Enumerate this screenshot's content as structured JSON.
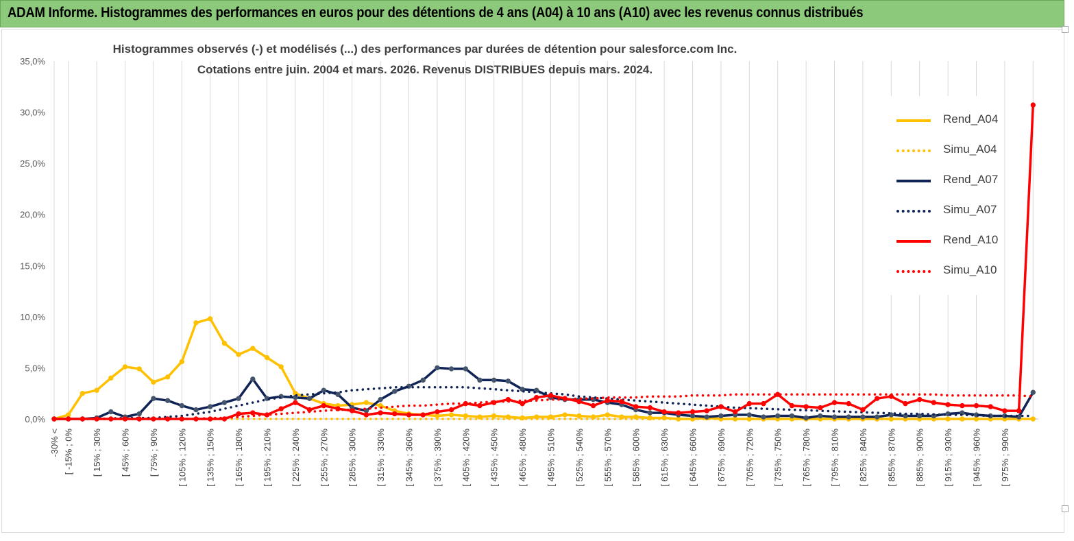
{
  "banner": {
    "title": "ADAM Informe. Histogrammes des performances en euros pour des détentions de 4 ans (A04) à 10 ans (A10) avec les revenus connus distribués"
  },
  "chart_data": {
    "type": "line",
    "title": "Histogrammes observés (-) et modélisés (...) des performances par durées de détention pour salesforce.com Inc.",
    "subtitle": "Cotations entre juin. 2004 et mars. 2026. Revenus DISTRIBUES depuis mars. 2024.",
    "xlabel": "",
    "ylabel": "",
    "ylim": [
      0,
      35
    ],
    "yticks": [
      "0,0%",
      "5,0%",
      "10,0%",
      "15,0%",
      "20,0%",
      "25,0%",
      "30,0%",
      "35,0%"
    ],
    "grid": "vertical",
    "legend_position": "right",
    "x_tick_labels": [
      "-30% <",
      "[ -15% ; 0%",
      "[ 15% ; 30%",
      "[ 45% ; 60%",
      "[ 75% ; 90%",
      "[ 105% ; 120%",
      "[ 135% ; 150%",
      "[ 165% ; 180%",
      "[ 195% ; 210%",
      "[ 225% ; 240%",
      "[ 255% ; 270%",
      "[ 285% ; 300%",
      "[ 315% ; 330%",
      "[ 345% ; 360%",
      "[ 375% ; 390%",
      "[ 405% ; 420%",
      "[ 435% ; 450%",
      "[ 465% ; 480%",
      "[ 495% ; 510%",
      "[ 525% ; 540%",
      "[ 555% ; 570%",
      "[ 585% ; 600%",
      "[ 615% ; 630%",
      "[ 645% ; 660%",
      "[ 675% ; 690%",
      "[ 705% ; 720%",
      "[ 735% ; 750%",
      "[ 765% ; 780%",
      "[ 795% ; 810%",
      "[ 825% ; 840%",
      "[ 855% ; 870%",
      "[ 885% ; 900%",
      "[ 915% ; 930%",
      "[ 945% ; 960%",
      "[ 975% ; 990%"
    ],
    "n_points": 70,
    "series": [
      {
        "name": "Rend_A04",
        "style": "solid",
        "color": "#ffc000",
        "values": [
          0.0,
          0.4,
          2.5,
          2.8,
          4.0,
          5.1,
          4.9,
          3.6,
          4.1,
          5.6,
          9.4,
          9.8,
          7.4,
          6.3,
          6.9,
          6.0,
          5.1,
          2.5,
          2.0,
          1.5,
          1.3,
          1.4,
          1.6,
          1.3,
          0.8,
          0.5,
          0.4,
          0.3,
          0.4,
          0.3,
          0.2,
          0.3,
          0.2,
          0.1,
          0.2,
          0.2,
          0.4,
          0.3,
          0.2,
          0.4,
          0.2,
          0.2,
          0.1,
          0.1,
          0.0,
          0.0,
          0.1,
          0.0,
          0.0,
          0.0,
          0.0,
          0.0,
          0.0,
          0.0,
          0.0,
          0.0,
          0.0,
          0.0,
          0.0,
          0.0,
          0.0,
          0.0,
          0.0,
          0.0,
          0.0,
          0.0,
          0.0,
          0.0,
          0.0,
          0.0
        ]
      },
      {
        "name": "Simu_A04",
        "style": "dotted",
        "color": "#ffc000",
        "values": [
          0,
          0,
          0,
          0,
          0,
          0,
          0,
          0,
          0,
          0,
          0,
          0,
          0,
          0,
          0,
          0,
          0,
          0,
          0,
          0,
          0,
          0,
          0,
          0,
          0,
          0,
          0,
          0,
          0,
          0,
          0,
          0,
          0,
          0,
          0,
          0,
          0,
          0,
          0,
          0,
          0,
          0,
          0,
          0,
          0,
          0,
          0,
          0,
          0,
          0,
          0,
          0,
          0,
          0,
          0,
          0,
          0,
          0,
          0,
          0,
          0,
          0,
          0,
          0,
          0,
          0,
          0,
          0,
          0,
          0
        ]
      },
      {
        "name": "Rend_A07",
        "style": "solid",
        "color": "#0f2356",
        "values": [
          0.0,
          0.0,
          0.0,
          0.1,
          0.7,
          0.2,
          0.5,
          2.0,
          1.8,
          1.3,
          0.9,
          1.2,
          1.6,
          2.0,
          3.9,
          2.0,
          2.2,
          2.1,
          2.0,
          2.8,
          2.4,
          1.1,
          0.8,
          1.9,
          2.7,
          3.2,
          3.8,
          5.0,
          4.9,
          4.9,
          3.8,
          3.8,
          3.7,
          2.9,
          2.8,
          2.1,
          1.9,
          1.9,
          1.9,
          1.6,
          1.4,
          0.9,
          0.6,
          0.6,
          0.4,
          0.3,
          0.2,
          0.3,
          0.4,
          0.4,
          0.2,
          0.3,
          0.3,
          0.1,
          0.3,
          0.2,
          0.2,
          0.2,
          0.2,
          0.4,
          0.3,
          0.3,
          0.3,
          0.5,
          0.6,
          0.4,
          0.3,
          0.3,
          0.2,
          2.6
        ]
      },
      {
        "name": "Simu_A07",
        "style": "dotted",
        "color": "#0f2356",
        "values": [
          0.0,
          0.0,
          0.0,
          0.0,
          0.05,
          0.1,
          0.1,
          0.1,
          0.2,
          0.3,
          0.5,
          0.7,
          1.0,
          1.3,
          1.6,
          1.9,
          2.1,
          2.3,
          2.4,
          2.5,
          2.6,
          2.8,
          2.9,
          3.0,
          3.1,
          3.1,
          3.1,
          3.1,
          3.1,
          3.1,
          3.0,
          2.9,
          2.8,
          2.7,
          2.6,
          2.5,
          2.4,
          2.2,
          2.1,
          2.0,
          1.9,
          1.8,
          1.7,
          1.6,
          1.5,
          1.4,
          1.3,
          1.2,
          1.1,
          1.05,
          1.0,
          0.95,
          0.9,
          0.85,
          0.8,
          0.75,
          0.7,
          0.65,
          0.6,
          0.55,
          0.5,
          0.5,
          0.45,
          0.4,
          0.4,
          0.35,
          0.3,
          0.3,
          0.3,
          0.3
        ]
      },
      {
        "name": "Rend_A10",
        "style": "solid",
        "color": "#ff0000",
        "values": [
          0.0,
          0.0,
          0.0,
          0.0,
          0.0,
          0.0,
          0.0,
          0.0,
          0.0,
          0.0,
          0.0,
          0.0,
          0.0,
          0.5,
          0.6,
          0.4,
          1.0,
          1.6,
          0.9,
          1.3,
          1.0,
          0.8,
          0.4,
          0.6,
          0.5,
          0.4,
          0.4,
          0.7,
          0.9,
          1.5,
          1.3,
          1.6,
          1.9,
          1.5,
          2.1,
          2.3,
          2.0,
          1.7,
          1.3,
          1.8,
          1.7,
          1.2,
          1.1,
          0.7,
          0.6,
          0.7,
          0.8,
          1.2,
          0.7,
          1.5,
          1.5,
          2.4,
          1.3,
          1.2,
          1.1,
          1.6,
          1.5,
          0.9,
          2.0,
          2.2,
          1.5,
          1.9,
          1.6,
          1.4,
          1.3,
          1.3,
          1.2,
          0.8,
          0.8,
          30.7
        ]
      },
      {
        "name": "Simu_A10",
        "style": "dotted",
        "color": "#ff0000",
        "values": [
          0.0,
          0.0,
          0.0,
          0.0,
          0.0,
          0.0,
          0.0,
          0.0,
          0.0,
          0.0,
          0.0,
          0.1,
          0.1,
          0.2,
          0.3,
          0.4,
          0.5,
          0.6,
          0.7,
          0.8,
          0.9,
          0.9,
          1.0,
          1.1,
          1.2,
          1.3,
          1.3,
          1.4,
          1.5,
          1.5,
          1.6,
          1.7,
          1.7,
          1.8,
          1.8,
          1.9,
          1.9,
          2.0,
          2.0,
          2.1,
          2.1,
          2.1,
          2.2,
          2.2,
          2.2,
          2.3,
          2.3,
          2.3,
          2.4,
          2.4,
          2.4,
          2.4,
          2.4,
          2.4,
          2.4,
          2.4,
          2.4,
          2.4,
          2.4,
          2.4,
          2.4,
          2.4,
          2.4,
          2.3,
          2.3,
          2.3,
          2.3,
          2.3,
          2.3,
          2.2
        ]
      }
    ]
  }
}
